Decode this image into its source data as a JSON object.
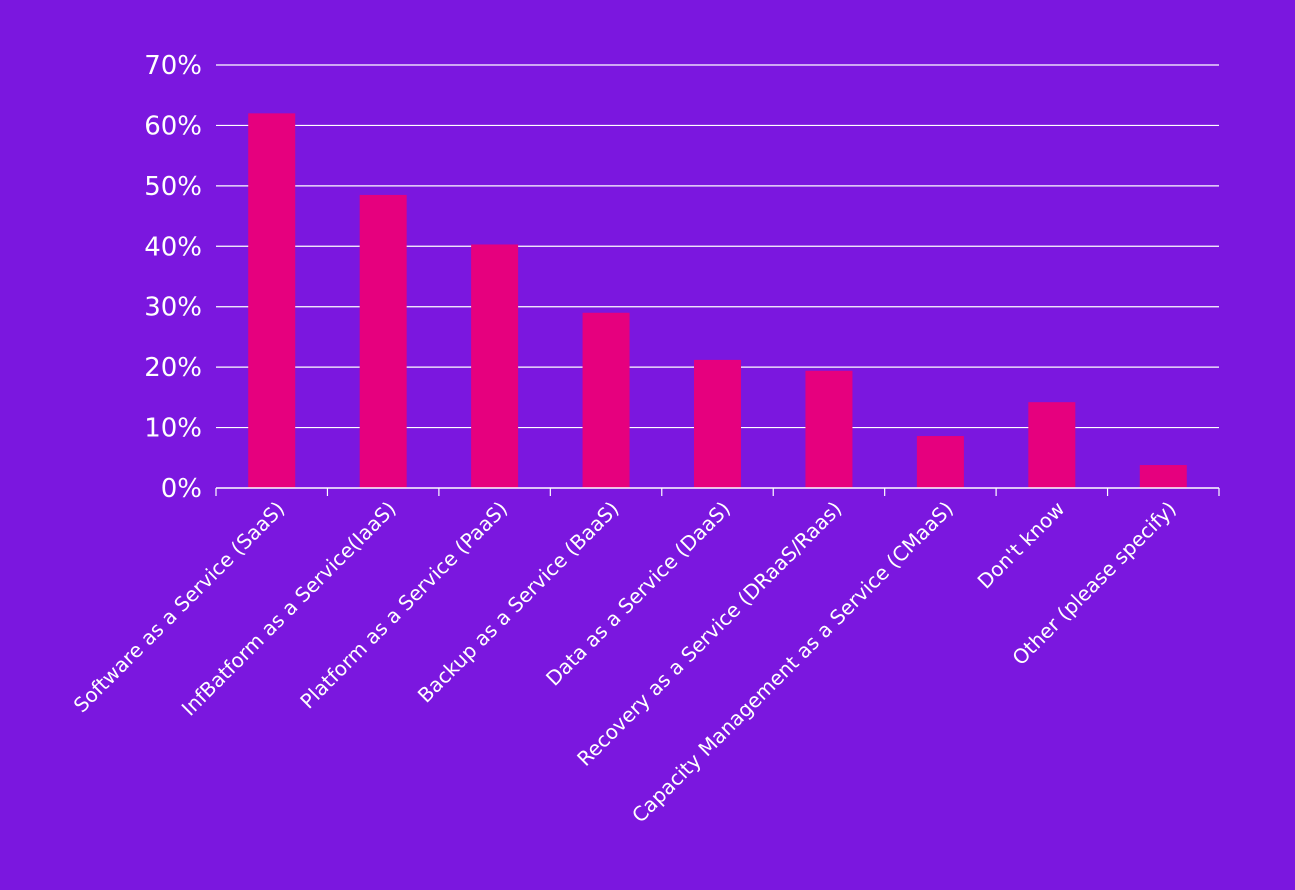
{
  "chart_data": {
    "type": "bar",
    "title": "",
    "xlabel": "",
    "ylabel": "",
    "ylim": [
      0,
      70
    ],
    "yticks": [
      "0%",
      "10%",
      "20%",
      "30%",
      "40%",
      "50%",
      "60%",
      "70%"
    ],
    "ytick_values": [
      0,
      10,
      20,
      30,
      40,
      50,
      60,
      70
    ],
    "grid": true,
    "categories": [
      "Software as a Service (SaaS)",
      "InfBatform as a Service(IaaS)",
      "Platform as a Service (PaaS)",
      "Backup as a Service (BaaS)",
      "Data as a Service (DaaS)",
      "Recovery as a Service (DRaaS/Raas)",
      "Capacity Management as a Service (CMaaS)",
      "Don't know",
      "Other (please specify)"
    ],
    "values": [
      62,
      48.5,
      40.3,
      29,
      21.2,
      19.4,
      8.6,
      14.2,
      3.8
    ],
    "colors": {
      "background": "#7B17DF",
      "bar": "#E6007E",
      "grid": "#FFFFFF",
      "text": "#FFFFFF"
    }
  }
}
